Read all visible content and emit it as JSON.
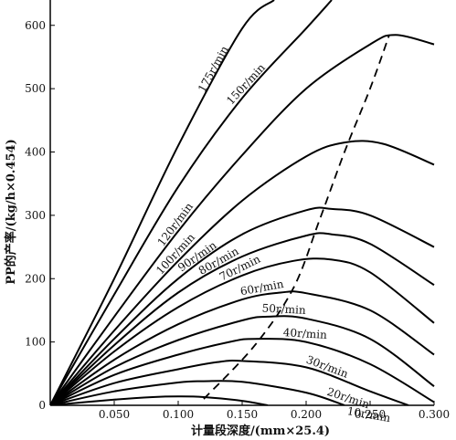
{
  "chart_data": {
    "type": "line",
    "xlabel": "计量段深度/(mm×25.4)",
    "ylabel": "PP的产率/(kg/h×0.454)",
    "xlim": [
      0,
      0.3
    ],
    "ylim": [
      0,
      640
    ],
    "xticks": [
      {
        "value": 0.05,
        "label": "0.050"
      },
      {
        "value": 0.1,
        "label": "0.100"
      },
      {
        "value": 0.15,
        "label": "0.150"
      },
      {
        "value": 0.2,
        "label": "0.200"
      },
      {
        "value": 0.25,
        "label": "0.250"
      },
      {
        "value": 0.3,
        "label": "0.300"
      }
    ],
    "yticks": [
      {
        "value": 0,
        "label": "0"
      },
      {
        "value": 100,
        "label": "100"
      },
      {
        "value": 200,
        "label": "200"
      },
      {
        "value": 300,
        "label": "300"
      },
      {
        "value": 400,
        "label": "400"
      },
      {
        "value": 500,
        "label": "500"
      },
      {
        "value": 600,
        "label": "600"
      }
    ],
    "series": [
      {
        "name": "175r/min",
        "x": [
          0,
          0.05,
          0.1,
          0.15,
          0.175
        ],
        "y": [
          0,
          200,
          410,
          595,
          640
        ]
      },
      {
        "name": "150r/min",
        "x": [
          0,
          0.05,
          0.1,
          0.15,
          0.2,
          0.22
        ],
        "y": [
          0,
          175,
          345,
          485,
          595,
          640
        ]
      },
      {
        "name": "120r/min",
        "x": [
          0,
          0.05,
          0.1,
          0.15,
          0.2,
          0.25,
          0.27,
          0.3
        ],
        "y": [
          0,
          140,
          275,
          395,
          500,
          570,
          585,
          570
        ]
      },
      {
        "name": "100r/min",
        "x": [
          0,
          0.05,
          0.1,
          0.15,
          0.2,
          0.23,
          0.26,
          0.3
        ],
        "y": [
          0,
          118,
          228,
          323,
          393,
          415,
          413,
          380
        ]
      },
      {
        "name": "90r/min",
        "x": [
          0,
          0.05,
          0.1,
          0.15,
          0.2,
          0.22,
          0.25,
          0.3
        ],
        "y": [
          0,
          105,
          200,
          270,
          308,
          310,
          300,
          250
        ]
      },
      {
        "name": "80r/min",
        "x": [
          0,
          0.05,
          0.1,
          0.15,
          0.2,
          0.22,
          0.25,
          0.3
        ],
        "y": [
          0,
          95,
          178,
          235,
          268,
          270,
          255,
          190
        ]
      },
      {
        "name": "70r/min",
        "x": [
          0,
          0.05,
          0.1,
          0.15,
          0.19,
          0.22,
          0.25,
          0.3
        ],
        "y": [
          0,
          85,
          155,
          205,
          228,
          230,
          210,
          130
        ]
      },
      {
        "name": "60r/min",
        "x": [
          0,
          0.05,
          0.1,
          0.15,
          0.18,
          0.2,
          0.25,
          0.3
        ],
        "y": [
          0,
          72,
          128,
          167,
          178,
          177,
          150,
          80
        ]
      },
      {
        "name": "50r/min",
        "x": [
          0,
          0.05,
          0.1,
          0.15,
          0.17,
          0.2,
          0.25,
          0.3
        ],
        "y": [
          0,
          60,
          103,
          134,
          140,
          137,
          105,
          30
        ]
      },
      {
        "name": "40r/min",
        "x": [
          0,
          0.05,
          0.1,
          0.14,
          0.16,
          0.2,
          0.25,
          0.3
        ],
        "y": [
          0,
          48,
          80,
          100,
          105,
          100,
          65,
          5
        ]
      },
      {
        "name": "30r/min",
        "x": [
          0,
          0.05,
          0.1,
          0.13,
          0.15,
          0.2,
          0.25,
          0.28
        ],
        "y": [
          0,
          35,
          57,
          68,
          70,
          60,
          22,
          0
        ]
      },
      {
        "name": "20r/min",
        "x": [
          0,
          0.05,
          0.1,
          0.12,
          0.15,
          0.2,
          0.23
        ],
        "y": [
          0,
          22,
          36,
          38,
          37,
          20,
          0
        ]
      },
      {
        "name": "10r/min",
        "x": [
          0,
          0.05,
          0.08,
          0.1,
          0.12,
          0.15,
          0.17
        ],
        "y": [
          0,
          9,
          13,
          14,
          13,
          7,
          0
        ]
      }
    ],
    "optimum_line": {
      "style": "dashed",
      "x": [
        0.12,
        0.16,
        0.19,
        0.21,
        0.23,
        0.25,
        0.265
      ],
      "y": [
        10,
        95,
        185,
        290,
        400,
        500,
        585
      ]
    }
  }
}
